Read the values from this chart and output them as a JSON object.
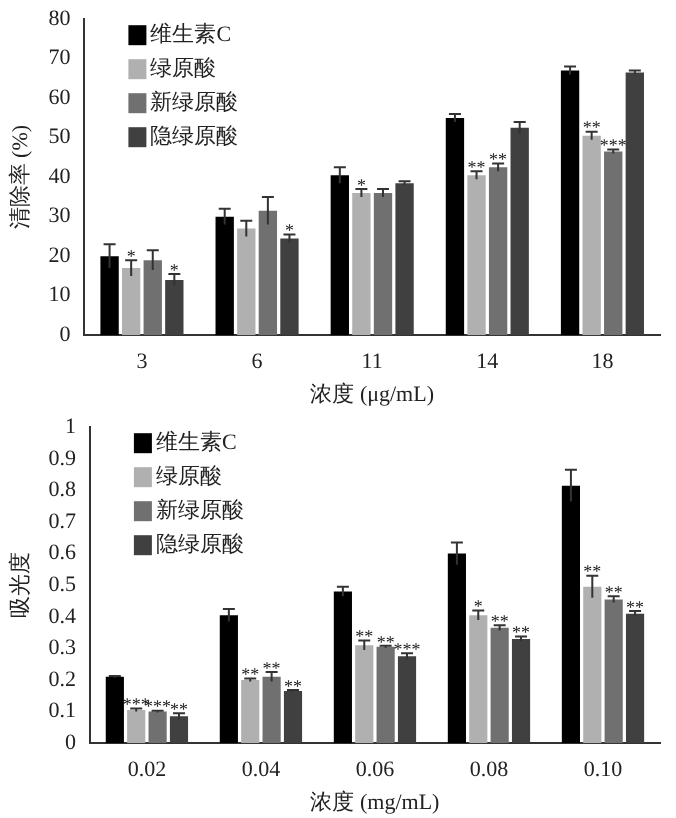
{
  "chart_data": [
    {
      "type": "bar",
      "xlabel": "浓度 (μg/mL)",
      "ylabel": "清除率 (%)",
      "categories": [
        "3",
        "6",
        "11",
        "14",
        "18"
      ],
      "ylim": [
        0,
        80
      ],
      "yticks": [
        0,
        10,
        20,
        30,
        40,
        50,
        60,
        70,
        80
      ],
      "grid": false,
      "legend": "top left",
      "series": [
        {
          "name": "维生素C",
          "color": "#000000",
          "values": [
            20,
            30,
            40.5,
            55,
            67
          ],
          "errors": [
            3,
            2,
            2,
            1,
            1
          ]
        },
        {
          "name": "绿原酸",
          "color": "#b0b0b0",
          "values": [
            17,
            27,
            36,
            40.5,
            50.5
          ],
          "errors": [
            2,
            2,
            1,
            1,
            1
          ]
        },
        {
          "name": "新绿原酸",
          "color": "#707070",
          "values": [
            19,
            31.5,
            36,
            42.5,
            46.5
          ],
          "errors": [
            2.5,
            3.5,
            1,
            1,
            0.5
          ]
        },
        {
          "name": "隐绿原酸",
          "color": "#404040",
          "values": [
            14,
            24.5,
            38.5,
            52.5,
            66.5
          ],
          "errors": [
            1.5,
            1,
            0.5,
            1.5,
            0.5
          ]
        }
      ],
      "annotations": [
        {
          "text": "*",
          "x": "3",
          "y": 19
        },
        {
          "text": "*",
          "x": "3",
          "y": 15.5
        },
        {
          "text": "*",
          "x": "6",
          "y": 25.5
        },
        {
          "text": "*",
          "x": "11",
          "y": 37
        },
        {
          "text": "**",
          "x": "14",
          "y": 41.5
        },
        {
          "text": "**",
          "x": "14",
          "y": 43.5
        },
        {
          "text": "**",
          "x": "18",
          "y": 51.5
        },
        {
          "text": "***",
          "x": "18",
          "y": 47
        }
      ]
    },
    {
      "type": "bar",
      "xlabel": "浓度 (mg/mL)",
      "ylabel": "吸光度",
      "categories": [
        "0.02",
        "0.04",
        "0.06",
        "0.08",
        "0.10"
      ],
      "ylim": [
        0,
        1
      ],
      "yticks": [
        0,
        0.1,
        0.2,
        0.3,
        0.4,
        0.5,
        0.6,
        0.7,
        0.8,
        0.9,
        1
      ],
      "grid": false,
      "legend": "top left",
      "series": [
        {
          "name": "维生素C",
          "color": "#000000",
          "values": [
            0.21,
            0.405,
            0.48,
            0.6,
            0.815
          ],
          "errors": [
            0.003,
            0.02,
            0.015,
            0.035,
            0.05
          ]
        },
        {
          "name": "绿原酸",
          "color": "#b0b0b0",
          "values": [
            0.105,
            0.2,
            0.31,
            0.405,
            0.495
          ],
          "errors": [
            0.005,
            0.005,
            0.015,
            0.015,
            0.035
          ]
        },
        {
          "name": "新绿原酸",
          "color": "#707070",
          "values": [
            0.1,
            0.21,
            0.305,
            0.365,
            0.455
          ],
          "errors": [
            0.003,
            0.015,
            0.003,
            0.008,
            0.01
          ]
        },
        {
          "name": "隐绿原酸",
          "color": "#404040",
          "values": [
            0.085,
            0.165,
            0.275,
            0.33,
            0.41
          ],
          "errors": [
            0.01,
            0.003,
            0.01,
            0.008,
            0.008
          ]
        }
      ],
      "annotations": [
        {
          "text": "***",
          "x": "0.02",
          "y": 0.11
        },
        {
          "text": "***",
          "x": "0.02",
          "y": 0.103
        },
        {
          "text": "**",
          "x": "0.02",
          "y": 0.095
        },
        {
          "text": "**",
          "x": "0.04",
          "y": 0.205
        },
        {
          "text": "**",
          "x": "0.04",
          "y": 0.225
        },
        {
          "text": "**",
          "x": "0.04",
          "y": 0.168
        },
        {
          "text": "**",
          "x": "0.06",
          "y": 0.325
        },
        {
          "text": "**",
          "x": "0.06",
          "y": 0.308
        },
        {
          "text": "***",
          "x": "0.06",
          "y": 0.285
        },
        {
          "text": "*",
          "x": "0.08",
          "y": 0.42
        },
        {
          "text": "**",
          "x": "0.08",
          "y": 0.373
        },
        {
          "text": "**",
          "x": "0.08",
          "y": 0.338
        },
        {
          "text": "**",
          "x": "0.10",
          "y": 0.53
        },
        {
          "text": "**",
          "x": "0.10",
          "y": 0.465
        },
        {
          "text": "**",
          "x": "0.10",
          "y": 0.418
        }
      ]
    }
  ]
}
